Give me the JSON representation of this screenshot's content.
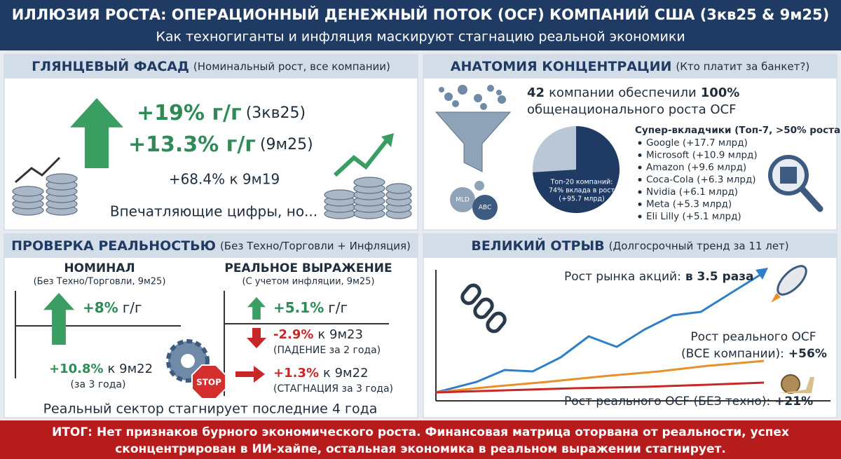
{
  "header": {
    "title": "ИЛЛЮЗИЯ РОСТА: ОПЕРАЦИОННЫЙ ДЕНЕЖНЫЙ ПОТОК (OCF) КОМПАНИЙ США (3кв25 & 9м25)",
    "subtitle": "Как техногиганты и инфляция маскируют стагнацию реальной экономики"
  },
  "panels": [
    {
      "title": "ГЛЯНЦЕВЫЙ ФАСАД",
      "subtitle": "(Номинальный рост, все компании)",
      "lines": [
        {
          "value": "+19% г/г",
          "note": "(3кв25)"
        },
        {
          "value": "+13.3% г/г",
          "note": "(9м25)"
        }
      ],
      "extra": "+68.4% к 9м19",
      "caption": "Впечатляющие цифры, но..."
    },
    {
      "title": "АНАТОМИЯ КОНЦЕНТРАЦИИ",
      "subtitle": "(Кто платит за банкет?)",
      "headline": [
        "42",
        "компании обеспечили",
        "100%",
        "общенационального роста OCF"
      ],
      "icons": [
        "MLD",
        "ABC"
      ],
      "pie": {
        "share": 74,
        "label": [
          "Топ-20 компаний:",
          "74% вклада в рост",
          "(+95.7 млрд)"
        ]
      },
      "contributors_title": "Супер-вкладчики (Топ-7, >50% роста):",
      "contributors": [
        "Google (+17.7 млрд)",
        "Microsoft (+10.9 млрд)",
        "Amazon (+9.6 млрд)",
        "Coca-Cola (+6.3 млрд)",
        "Nvidia (+6.1 млрд)",
        "Meta (+5.3 млрд)",
        "Eli Lilly (+5.1 млрд)"
      ]
    },
    {
      "title": "ПРОВЕРКА РЕАЛЬНОСТЬЮ",
      "subtitle": "(Без Техно/Торговли + Инфляция)",
      "nominal": {
        "title": "НОМИНАЛ",
        "subtitle": "(Без Техно/Торговли, 9м25)",
        "yoy": [
          "+8%",
          "г/г"
        ],
        "long": [
          "+10.8%",
          "к 9м22"
        ],
        "long_note": "(за 3 года)"
      },
      "real": {
        "title": "РЕАЛЬНОЕ ВЫРАЖЕНИЕ",
        "subtitle": "(С учетом инфляции, 9м25)",
        "yoy": [
          "+5.1%",
          "г/г"
        ],
        "two_year": [
          "-2.9%",
          "к 9м23"
        ],
        "two_year_note": "(ПАДЕНИЕ за 2 года)",
        "three_year": [
          "+1.3%",
          "к 9м22"
        ],
        "three_year_note": "(СТАГНАЦИЯ за 3 года)"
      },
      "stop": "STOP",
      "caption": "Реальный сектор стагнирует последние 4 года"
    },
    {
      "title": "ВЕЛИКИЙ ОТРЫВ",
      "subtitle": "(Долгосрочный тренд за 11 лет)",
      "market": [
        "Рост рынка акций:",
        "в 3.5 раза"
      ],
      "real_all": [
        "Рост реального OCF",
        "(ВСЕ компании):",
        "+56%"
      ],
      "real_ex_tech": [
        "Рост реального OCF (БЕЗ техно):",
        "+21%"
      ]
    }
  ],
  "footer": {
    "label": "ИТОГ:",
    "lines": [
      "Нет признаков бурного экономического роста. Финансовая матрица оторвана от реальности, успех",
      "сконцентрирован в ИИ-хайпе, остальная экономика в реальном выражении стагнирует."
    ]
  }
}
